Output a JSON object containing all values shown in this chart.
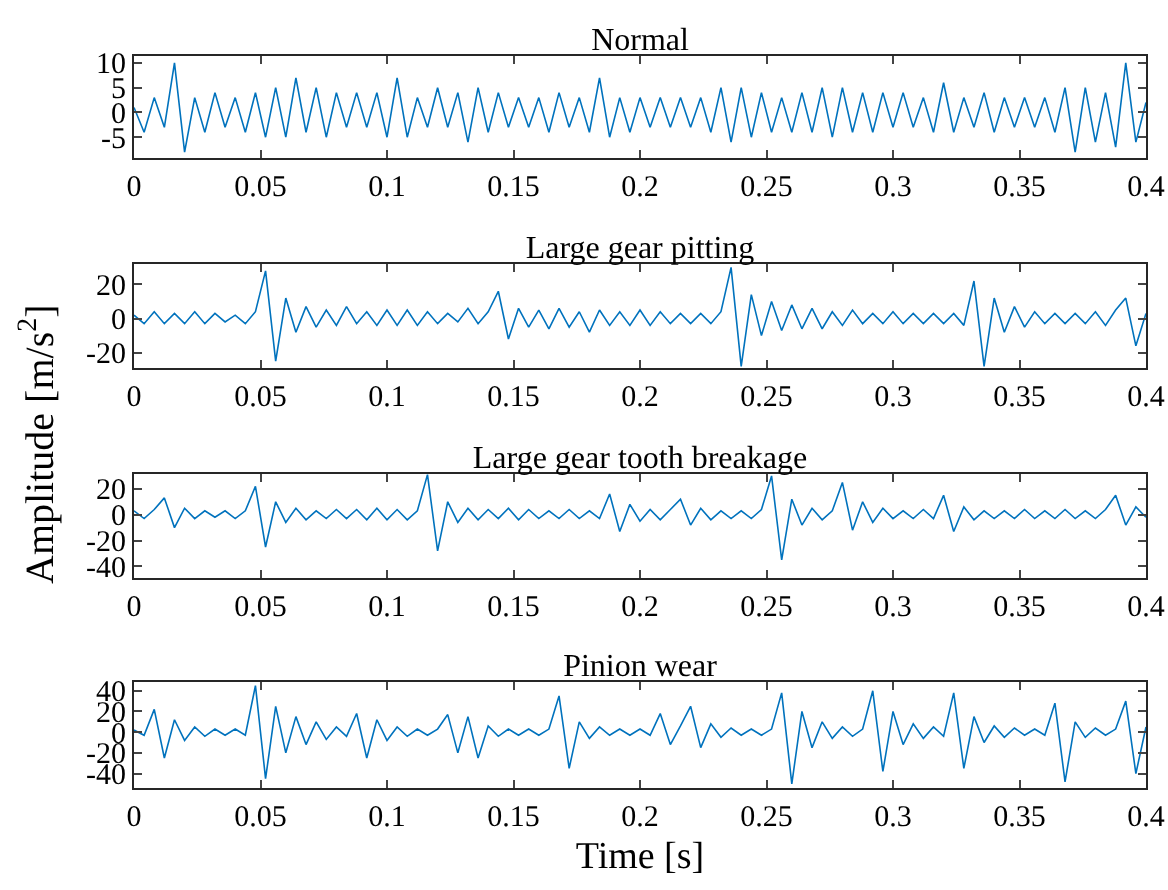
{
  "chart_data": [
    {
      "type": "line",
      "title": "Normal",
      "xlim": [
        0,
        0.4
      ],
      "xticks": [
        0,
        0.05,
        0.1,
        0.15,
        0.2,
        0.25,
        0.3,
        0.35,
        0.4
      ],
      "ylim": [
        -9.2,
        11.4
      ],
      "yticks": [
        -5,
        0,
        5,
        10
      ],
      "grid": false,
      "x": [
        0,
        0.004,
        0.008,
        0.012,
        0.016,
        0.02,
        0.024,
        0.028,
        0.032,
        0.036,
        0.04,
        0.044,
        0.048,
        0.052,
        0.056,
        0.06,
        0.064,
        0.068,
        0.072,
        0.076,
        0.08,
        0.084,
        0.088,
        0.092,
        0.096,
        0.1,
        0.104,
        0.108,
        0.112,
        0.116,
        0.12,
        0.124,
        0.128,
        0.132,
        0.136,
        0.14,
        0.144,
        0.148,
        0.152,
        0.156,
        0.16,
        0.164,
        0.168,
        0.172,
        0.176,
        0.18,
        0.184,
        0.188,
        0.192,
        0.196,
        0.2,
        0.204,
        0.208,
        0.212,
        0.216,
        0.22,
        0.224,
        0.228,
        0.232,
        0.236,
        0.24,
        0.244,
        0.248,
        0.252,
        0.256,
        0.26,
        0.264,
        0.268,
        0.272,
        0.276,
        0.28,
        0.284,
        0.288,
        0.292,
        0.296,
        0.3,
        0.304,
        0.308,
        0.312,
        0.316,
        0.32,
        0.324,
        0.328,
        0.332,
        0.336,
        0.34,
        0.344,
        0.348,
        0.352,
        0.356,
        0.36,
        0.364,
        0.368,
        0.372,
        0.376,
        0.38,
        0.384,
        0.388,
        0.392,
        0.396,
        0.4
      ],
      "series": [
        {
          "color": "#0072bd",
          "values": [
            1,
            -4,
            3,
            -3,
            10,
            -8,
            3,
            -4,
            4,
            -3,
            3,
            -4,
            4,
            -5,
            5,
            -5,
            7,
            -4,
            5,
            -5,
            4,
            -3,
            4,
            -3,
            4,
            -5,
            7,
            -5,
            3,
            -3,
            5,
            -3,
            4,
            -6,
            5,
            -4,
            4,
            -3,
            3,
            -3,
            3,
            -4,
            4,
            -3,
            3,
            -4,
            7,
            -5,
            3,
            -4,
            3,
            -3,
            3,
            -3,
            3,
            -3,
            3,
            -4,
            5,
            -6,
            5,
            -5,
            4,
            -4,
            3,
            -4,
            4,
            -4,
            5,
            -5,
            5,
            -4,
            4,
            -4,
            4,
            -3,
            4,
            -3,
            3,
            -4,
            6,
            -4,
            3,
            -3,
            4,
            -4,
            3,
            -3,
            3,
            -3,
            3,
            -4,
            5,
            -8,
            5,
            -6,
            4,
            -7,
            10,
            -6,
            2
          ]
        }
      ],
      "ylabel": "Amplitude [m/s$^{2}$]"
    },
    {
      "type": "line",
      "title": "Large gear pitting",
      "xlim": [
        0,
        0.4
      ],
      "xticks": [
        0,
        0.05,
        0.1,
        0.15,
        0.2,
        0.25,
        0.3,
        0.35,
        0.4
      ],
      "ylim": [
        -29,
        32
      ],
      "yticks": [
        -20,
        0,
        20
      ],
      "grid": false,
      "x": [
        0,
        0.004,
        0.008,
        0.012,
        0.016,
        0.02,
        0.024,
        0.028,
        0.032,
        0.036,
        0.04,
        0.044,
        0.048,
        0.052,
        0.056,
        0.06,
        0.064,
        0.068,
        0.072,
        0.076,
        0.08,
        0.084,
        0.088,
        0.092,
        0.096,
        0.1,
        0.104,
        0.108,
        0.112,
        0.116,
        0.12,
        0.124,
        0.128,
        0.132,
        0.136,
        0.14,
        0.144,
        0.148,
        0.152,
        0.156,
        0.16,
        0.164,
        0.168,
        0.172,
        0.176,
        0.18,
        0.184,
        0.188,
        0.192,
        0.196,
        0.2,
        0.204,
        0.208,
        0.212,
        0.216,
        0.22,
        0.224,
        0.228,
        0.232,
        0.236,
        0.24,
        0.244,
        0.248,
        0.252,
        0.256,
        0.26,
        0.264,
        0.268,
        0.272,
        0.276,
        0.28,
        0.284,
        0.288,
        0.292,
        0.296,
        0.3,
        0.304,
        0.308,
        0.312,
        0.316,
        0.32,
        0.324,
        0.328,
        0.332,
        0.336,
        0.34,
        0.344,
        0.348,
        0.352,
        0.356,
        0.36,
        0.364,
        0.368,
        0.372,
        0.376,
        0.38,
        0.384,
        0.388,
        0.392,
        0.396,
        0.4
      ],
      "series": [
        {
          "color": "#0072bd",
          "values": [
            2,
            -3,
            4,
            -3,
            3,
            -3,
            4,
            -3,
            3,
            -2,
            2,
            -3,
            4,
            28,
            -25,
            12,
            -8,
            7,
            -5,
            5,
            -4,
            7,
            -3,
            4,
            -4,
            5,
            -4,
            5,
            -4,
            4,
            -3,
            3,
            -2,
            6,
            -3,
            4,
            16,
            -12,
            6,
            -5,
            5,
            -6,
            6,
            -5,
            4,
            -8,
            5,
            -4,
            4,
            -4,
            5,
            -4,
            4,
            -3,
            3,
            -3,
            3,
            -3,
            4,
            30,
            -28,
            14,
            -10,
            10,
            -7,
            8,
            -6,
            6,
            -6,
            4,
            -4,
            5,
            -3,
            3,
            -3,
            4,
            -3,
            3,
            -3,
            3,
            -3,
            3,
            -4,
            22,
            -28,
            12,
            -8,
            7,
            -5,
            4,
            -3,
            3,
            -3,
            3,
            -3,
            4,
            -4,
            5,
            12,
            -16,
            3
          ]
        }
      ]
    },
    {
      "type": "line",
      "title": "Large gear tooth breakage",
      "xlim": [
        0,
        0.4
      ],
      "xticks": [
        0,
        0.05,
        0.1,
        0.15,
        0.2,
        0.25,
        0.3,
        0.35,
        0.4
      ],
      "ylim": [
        -49,
        31.5
      ],
      "yticks": [
        -40,
        -20,
        0,
        20
      ],
      "grid": false,
      "x": [
        0,
        0.004,
        0.008,
        0.012,
        0.016,
        0.02,
        0.024,
        0.028,
        0.032,
        0.036,
        0.04,
        0.044,
        0.048,
        0.052,
        0.056,
        0.06,
        0.064,
        0.068,
        0.072,
        0.076,
        0.08,
        0.084,
        0.088,
        0.092,
        0.096,
        0.1,
        0.104,
        0.108,
        0.112,
        0.116,
        0.12,
        0.124,
        0.128,
        0.132,
        0.136,
        0.14,
        0.144,
        0.148,
        0.152,
        0.156,
        0.16,
        0.164,
        0.168,
        0.172,
        0.176,
        0.18,
        0.184,
        0.188,
        0.192,
        0.196,
        0.2,
        0.204,
        0.208,
        0.212,
        0.216,
        0.22,
        0.224,
        0.228,
        0.232,
        0.236,
        0.24,
        0.244,
        0.248,
        0.252,
        0.256,
        0.26,
        0.264,
        0.268,
        0.272,
        0.276,
        0.28,
        0.284,
        0.288,
        0.292,
        0.296,
        0.3,
        0.304,
        0.308,
        0.312,
        0.316,
        0.32,
        0.324,
        0.328,
        0.332,
        0.336,
        0.34,
        0.344,
        0.348,
        0.352,
        0.356,
        0.36,
        0.364,
        0.368,
        0.372,
        0.376,
        0.38,
        0.384,
        0.388,
        0.392,
        0.396,
        0.4
      ],
      "series": [
        {
          "color": "#0072bd",
          "values": [
            3,
            -3,
            4,
            13,
            -10,
            5,
            -3,
            3,
            -2,
            3,
            -3,
            3,
            22,
            -25,
            10,
            -6,
            5,
            -4,
            3,
            -3,
            4,
            -3,
            4,
            -4,
            5,
            -4,
            4,
            -4,
            3,
            31,
            -28,
            10,
            -6,
            5,
            -4,
            4,
            -3,
            5,
            -4,
            4,
            -3,
            3,
            -3,
            4,
            -3,
            3,
            -3,
            16,
            -13,
            8,
            -5,
            4,
            -4,
            4,
            12,
            -8,
            5,
            -4,
            3,
            -3,
            3,
            -3,
            4,
            30,
            -35,
            12,
            -8,
            5,
            -4,
            3,
            25,
            -12,
            10,
            -6,
            5,
            -3,
            3,
            -3,
            4,
            -3,
            15,
            -13,
            6,
            -4,
            3,
            -3,
            3,
            -3,
            4,
            -3,
            3,
            -3,
            4,
            -3,
            3,
            -3,
            4,
            15,
            -8,
            6,
            -2
          ]
        }
      ]
    },
    {
      "type": "line",
      "title": "Pinion wear",
      "xlabel": "Time [s]",
      "xlim": [
        0,
        0.4
      ],
      "xticks": [
        0,
        0.05,
        0.1,
        0.15,
        0.2,
        0.25,
        0.3,
        0.35,
        0.4
      ],
      "ylim": [
        -54,
        48.5
      ],
      "yticks": [
        -40,
        -20,
        0,
        20,
        40
      ],
      "grid": false,
      "x": [
        0,
        0.004,
        0.008,
        0.012,
        0.016,
        0.02,
        0.024,
        0.028,
        0.032,
        0.036,
        0.04,
        0.044,
        0.048,
        0.052,
        0.056,
        0.06,
        0.064,
        0.068,
        0.072,
        0.076,
        0.08,
        0.084,
        0.088,
        0.092,
        0.096,
        0.1,
        0.104,
        0.108,
        0.112,
        0.116,
        0.12,
        0.124,
        0.128,
        0.132,
        0.136,
        0.14,
        0.144,
        0.148,
        0.152,
        0.156,
        0.16,
        0.164,
        0.168,
        0.172,
        0.176,
        0.18,
        0.184,
        0.188,
        0.192,
        0.196,
        0.2,
        0.204,
        0.208,
        0.212,
        0.216,
        0.22,
        0.224,
        0.228,
        0.232,
        0.236,
        0.24,
        0.244,
        0.248,
        0.252,
        0.256,
        0.26,
        0.264,
        0.268,
        0.272,
        0.276,
        0.28,
        0.284,
        0.288,
        0.292,
        0.296,
        0.3,
        0.304,
        0.308,
        0.312,
        0.316,
        0.32,
        0.324,
        0.328,
        0.332,
        0.336,
        0.34,
        0.344,
        0.348,
        0.352,
        0.356,
        0.36,
        0.364,
        0.368,
        0.372,
        0.376,
        0.38,
        0.384,
        0.388,
        0.392,
        0.396,
        0.4
      ],
      "series": [
        {
          "color": "#0072bd",
          "values": [
            2,
            -3,
            22,
            -25,
            12,
            -8,
            5,
            -4,
            3,
            -3,
            3,
            -3,
            45,
            -45,
            25,
            -20,
            15,
            -12,
            10,
            -7,
            5,
            -4,
            18,
            -25,
            12,
            -8,
            5,
            -4,
            3,
            -3,
            3,
            17,
            -20,
            15,
            -25,
            6,
            -4,
            3,
            -3,
            3,
            -3,
            3,
            35,
            -35,
            10,
            -6,
            5,
            -3,
            3,
            -3,
            3,
            -3,
            18,
            -12,
            6,
            25,
            -15,
            8,
            -5,
            4,
            -3,
            3,
            -3,
            3,
            38,
            -50,
            20,
            -15,
            10,
            -6,
            5,
            -4,
            3,
            40,
            -38,
            20,
            -12,
            8,
            -6,
            5,
            -4,
            38,
            -35,
            15,
            -10,
            6,
            -5,
            4,
            -3,
            3,
            -3,
            28,
            -48,
            10,
            -5,
            4,
            -3,
            3,
            30,
            -40,
            5
          ]
        }
      ]
    }
  ]
}
